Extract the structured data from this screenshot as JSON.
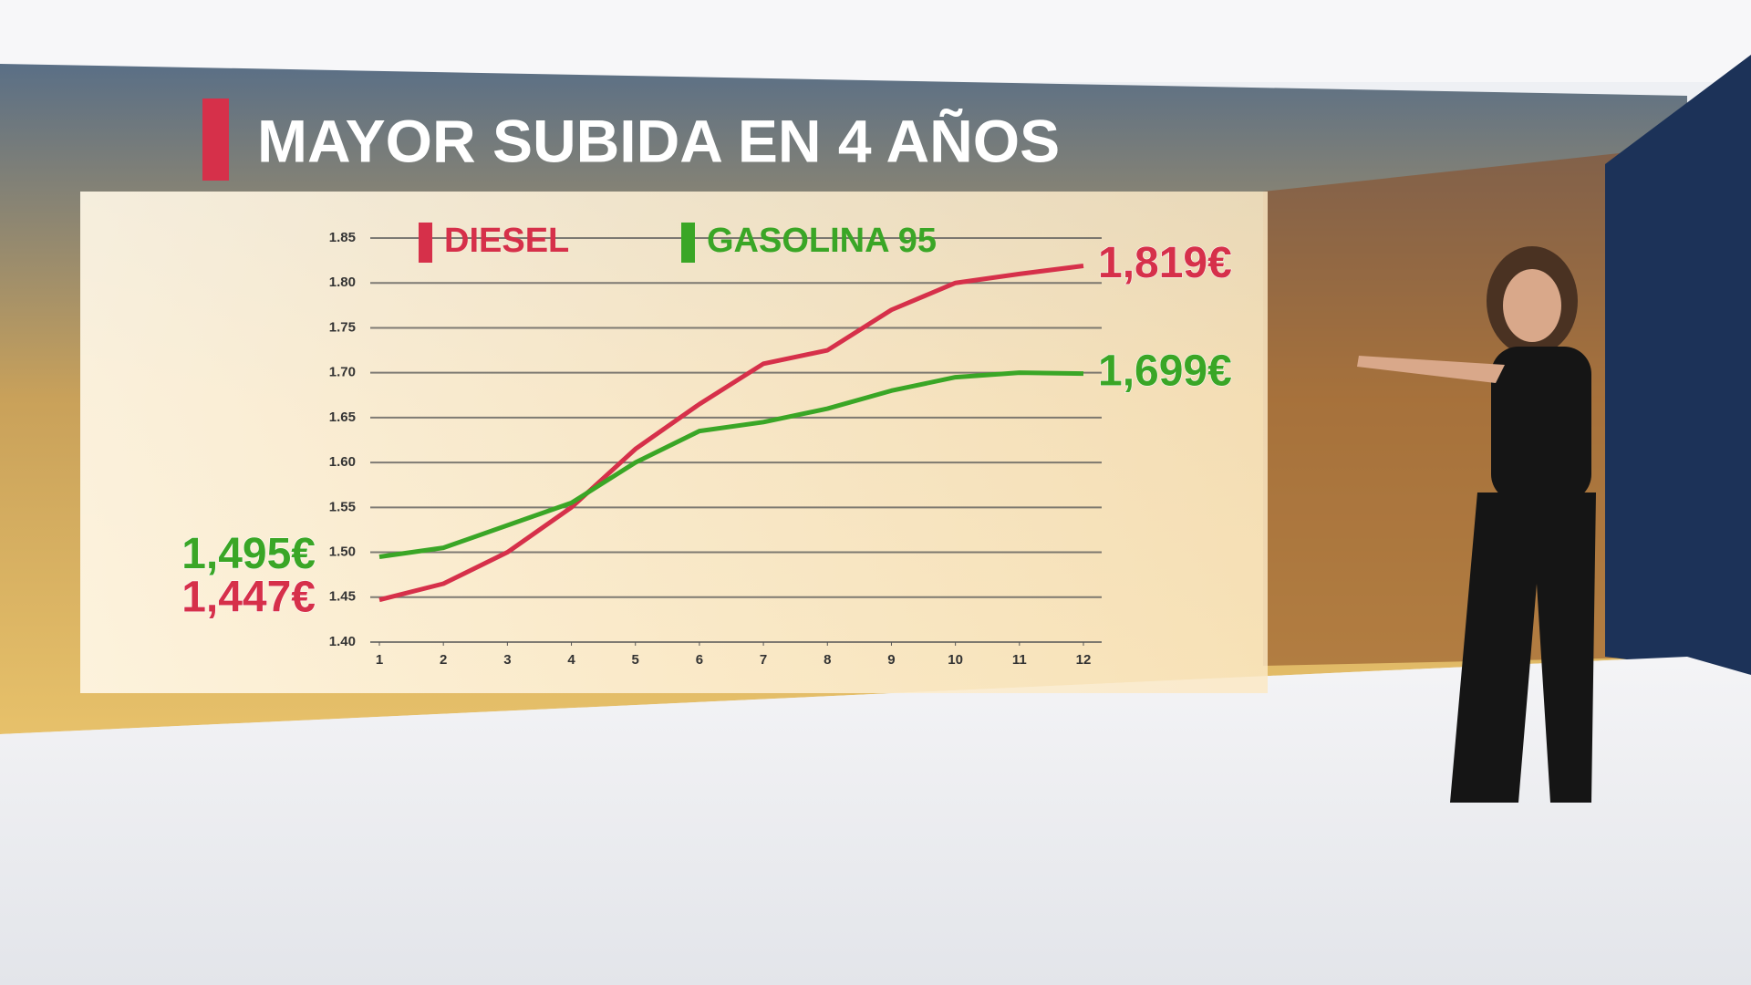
{
  "chart_data": {
    "type": "line",
    "title": "MAYOR SUBIDA EN 4 AÑOS",
    "x": [
      1,
      2,
      3,
      4,
      5,
      6,
      7,
      8,
      9,
      10,
      11,
      12
    ],
    "xlim": [
      1,
      12
    ],
    "xticks": [
      1,
      2,
      3,
      4,
      5,
      6,
      7,
      8,
      9,
      10,
      11,
      12
    ],
    "ylim": [
      1.4,
      1.85
    ],
    "yticks": [
      {
        "value": 1.4,
        "label": "1.40"
      },
      1.45,
      {
        "value": 1.5,
        "label": "1.50"
      },
      1.55,
      {
        "value": 1.6,
        "label": "1.60"
      },
      1.65,
      {
        "value": 1.7,
        "label": "1.70"
      },
      1.75,
      {
        "value": 1.8,
        "label": "1.80"
      },
      1.85
    ],
    "grid": true,
    "series": [
      {
        "name": "DIESEL",
        "color": "#d6304a",
        "values": [
          1.447,
          1.465,
          1.5,
          1.55,
          1.615,
          1.665,
          1.71,
          1.725,
          1.77,
          1.8,
          1.81,
          1.819
        ],
        "value_labels": [
          "1,447€",
          null,
          null,
          null,
          null,
          null,
          null,
          null,
          null,
          null,
          null,
          "1,819€"
        ]
      },
      {
        "name": "GASOLINA 95",
        "color": "#3aa626",
        "values": [
          1.495,
          1.505,
          1.53,
          1.555,
          1.6,
          1.635,
          1.645,
          1.66,
          1.68,
          1.695,
          1.7,
          1.699
        ],
        "value_labels": [
          "1,495€",
          null,
          null,
          null,
          null,
          null,
          null,
          null,
          null,
          null,
          null,
          "1,699€"
        ]
      }
    ]
  }
}
